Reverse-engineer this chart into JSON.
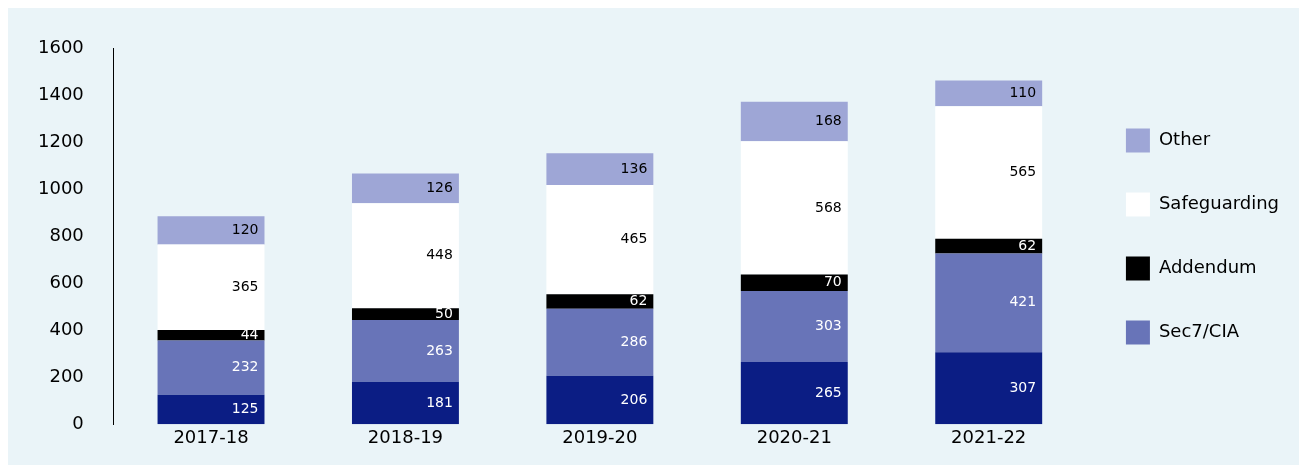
{
  "chart_data": {
    "type": "bar",
    "stacked": true,
    "data_labels": true,
    "grid": false,
    "legend": "right",
    "categories": [
      "2017-18",
      "2018-19",
      "2019-20",
      "2020-21",
      "2021-22"
    ],
    "ylim": [
      0,
      1600
    ],
    "yticks": [
      0,
      200,
      400,
      600,
      800,
      1000,
      1200,
      1400,
      1600
    ],
    "series": [
      {
        "color": "#0b1d84",
        "values": [
          125,
          181,
          206,
          265,
          307
        ]
      },
      {
        "name": "Sec7/CIA",
        "color": "#6874b8",
        "values": [
          232,
          263,
          286,
          303,
          421
        ]
      },
      {
        "name": "Addendum",
        "color": "#000000",
        "values": [
          44,
          50,
          62,
          70,
          62
        ]
      },
      {
        "name": "Safeguarding",
        "color": "#ffffff",
        "values": [
          365,
          448,
          465,
          568,
          565
        ]
      },
      {
        "name": "Other",
        "color": "#9ea6d6",
        "values": [
          120,
          126,
          136,
          168,
          110
        ]
      }
    ]
  }
}
